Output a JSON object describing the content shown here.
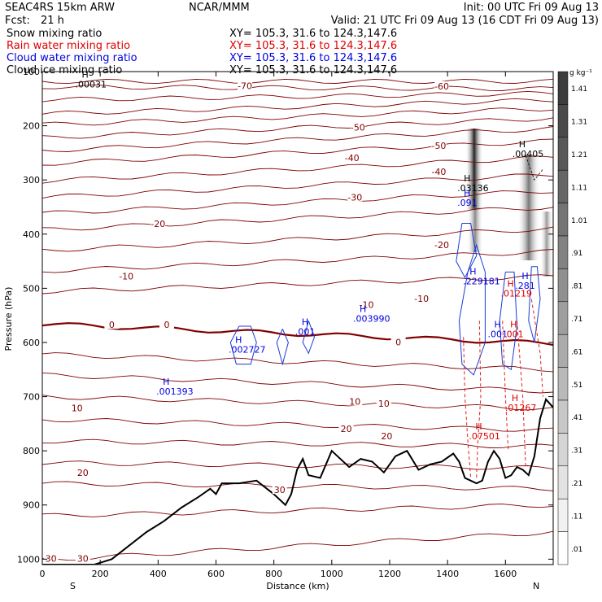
{
  "header": {
    "model": "SEAC4RS 15km ARW",
    "fcst_label": "Fcst:",
    "fcst_value": "21 h",
    "center": "NCAR/MMM",
    "init": "Init: 00 UTC Fri 09 Aug 13",
    "valid": "Valid: 21 UTC Fri 09 Aug 13 (16 CDT Fri 09 Aug 13)"
  },
  "fields": [
    {
      "label": "Snow mixing ratio",
      "xy": "XY= 105.3, 31.6 to 124.3,147.6",
      "color": "#000000"
    },
    {
      "label": "Rain water mixing ratio",
      "xy": "XY= 105.3, 31.6 to 124.3,147.6",
      "color": "#e00000"
    },
    {
      "label": "Cloud water mixing ratio",
      "xy": "XY= 105.3, 31.6 to 124.3,147.6",
      "color": "#0000e0"
    },
    {
      "label": "Cloud ice mixing ratio",
      "xy": "XY= 105.3, 31.6 to 124.3,147.6",
      "color": "#000000"
    }
  ],
  "chart_data": {
    "type": "line",
    "xlabel": "Distance (km)",
    "ylabel": "Pressure (hPa)",
    "xlim": [
      0,
      1765
    ],
    "ylim": [
      1010,
      100
    ],
    "x_ticks": [
      0,
      200,
      400,
      600,
      800,
      1000,
      1200,
      1400,
      1600
    ],
    "y_ticks": [
      100,
      200,
      300,
      400,
      500,
      600,
      700,
      800,
      900,
      1000
    ],
    "y_tick_labels": [
      "100",
      "200",
      "300",
      "400",
      "500",
      "600",
      "700",
      "800",
      "900",
      "1000"
    ],
    "left_end_label": "S",
    "right_end_label": "N",
    "temperature_labels": [
      {
        "text": "-70",
        "x": 700,
        "y": 129
      },
      {
        "text": "-60",
        "x": 1380,
        "y": 130
      },
      {
        "text": "-50",
        "x": 1090,
        "y": 206
      },
      {
        "text": "-50",
        "x": 1370,
        "y": 240
      },
      {
        "text": "-40",
        "x": 1070,
        "y": 262
      },
      {
        "text": "-40",
        "x": 1370,
        "y": 288
      },
      {
        "text": "-30",
        "x": 1080,
        "y": 335
      },
      {
        "text": "-20",
        "x": 400,
        "y": 384
      },
      {
        "text": "-20",
        "x": 1380,
        "y": 423
      },
      {
        "text": "-10",
        "x": 290,
        "y": 481
      },
      {
        "text": "-10",
        "x": 1120,
        "y": 533
      },
      {
        "text": "-10",
        "x": 1310,
        "y": 522
      },
      {
        "text": "0",
        "x": 240,
        "y": 570
      },
      {
        "text": "0",
        "x": 430,
        "y": 570
      },
      {
        "text": "0",
        "x": 1230,
        "y": 602
      },
      {
        "text": "10",
        "x": 120,
        "y": 724
      },
      {
        "text": "10",
        "x": 1080,
        "y": 712
      },
      {
        "text": "10",
        "x": 1180,
        "y": 716
      },
      {
        "text": "20",
        "x": 1050,
        "y": 762
      },
      {
        "text": "20",
        "x": 1190,
        "y": 776
      },
      {
        "text": "20",
        "x": 140,
        "y": 843
      },
      {
        "text": "30",
        "x": 820,
        "y": 875
      },
      {
        "text": "30",
        "x": 140,
        "y": 1002
      },
      {
        "text": "30",
        "x": 30,
        "y": 1002
      }
    ],
    "maxima_labels": [
      {
        "text": ".00031",
        "x": 170,
        "y": 126,
        "color": "#000000"
      },
      {
        "text": ".00405",
        "x": 1680,
        "y": 255,
        "color": "#000000"
      },
      {
        "text": ".03136",
        "x": 1490,
        "y": 318,
        "color": "#000000"
      },
      {
        "text": ".091",
        "x": 1490,
        "y": 345,
        "color": "#0000e0"
      },
      {
        "text": ".229181",
        "x": 1510,
        "y": 490,
        "color": "#0000e0"
      },
      {
        "text": ".01219",
        "x": 1640,
        "y": 512,
        "color": "#e00000"
      },
      {
        "text": ".281",
        "x": 1690,
        "y": 498,
        "color": "#0000e0"
      },
      {
        "text": ".003990",
        "x": 1130,
        "y": 559,
        "color": "#0000e0"
      },
      {
        "text": ".001",
        "x": 930,
        "y": 583,
        "color": "#0000e0"
      },
      {
        "text": ".002727",
        "x": 700,
        "y": 616,
        "color": "#0000e0"
      },
      {
        "text": ".001393",
        "x": 450,
        "y": 693,
        "color": "#0000e0"
      },
      {
        "text": ".01267",
        "x": 1655,
        "y": 723,
        "color": "#e00000"
      },
      {
        "text": ".07501",
        "x": 1530,
        "y": 776,
        "color": "#e00000"
      },
      {
        "text": ".001",
        "x": 1595,
        "y": 587,
        "color": "#0000e0"
      },
      {
        "text": ".001",
        "x": 1650,
        "y": 587,
        "color": "#e00000"
      }
    ],
    "terrain_pressure": {
      "x": [
        0,
        180,
        240,
        300,
        360,
        420,
        480,
        540,
        580,
        600,
        620,
        680,
        740,
        800,
        840,
        860,
        880,
        900,
        920,
        960,
        1000,
        1020,
        1060,
        1100,
        1140,
        1180,
        1220,
        1260,
        1300,
        1340,
        1380,
        1420,
        1440,
        1460,
        1480,
        1500,
        1520,
        1540,
        1560,
        1580,
        1600,
        1620,
        1640,
        1660,
        1680,
        1700,
        1720,
        1740,
        1765
      ],
      "y": [
        1010,
        1010,
        1000,
        975,
        950,
        930,
        905,
        885,
        870,
        880,
        860,
        860,
        855,
        880,
        900,
        880,
        835,
        815,
        845,
        850,
        800,
        810,
        830,
        815,
        820,
        840,
        810,
        800,
        835,
        825,
        820,
        805,
        820,
        850,
        855,
        860,
        855,
        820,
        800,
        815,
        850,
        845,
        830,
        835,
        845,
        810,
        740,
        705,
        720
      ]
    },
    "snow_colorbar": {
      "unit": "g kg⁻¹",
      "labels": [
        "1.41",
        "1.31",
        "1.21",
        "1.11",
        "1.01",
        ".91",
        ".81",
        ".71",
        ".61",
        ".51",
        ".41",
        ".31",
        ".21",
        ".11",
        ".01"
      ]
    }
  }
}
